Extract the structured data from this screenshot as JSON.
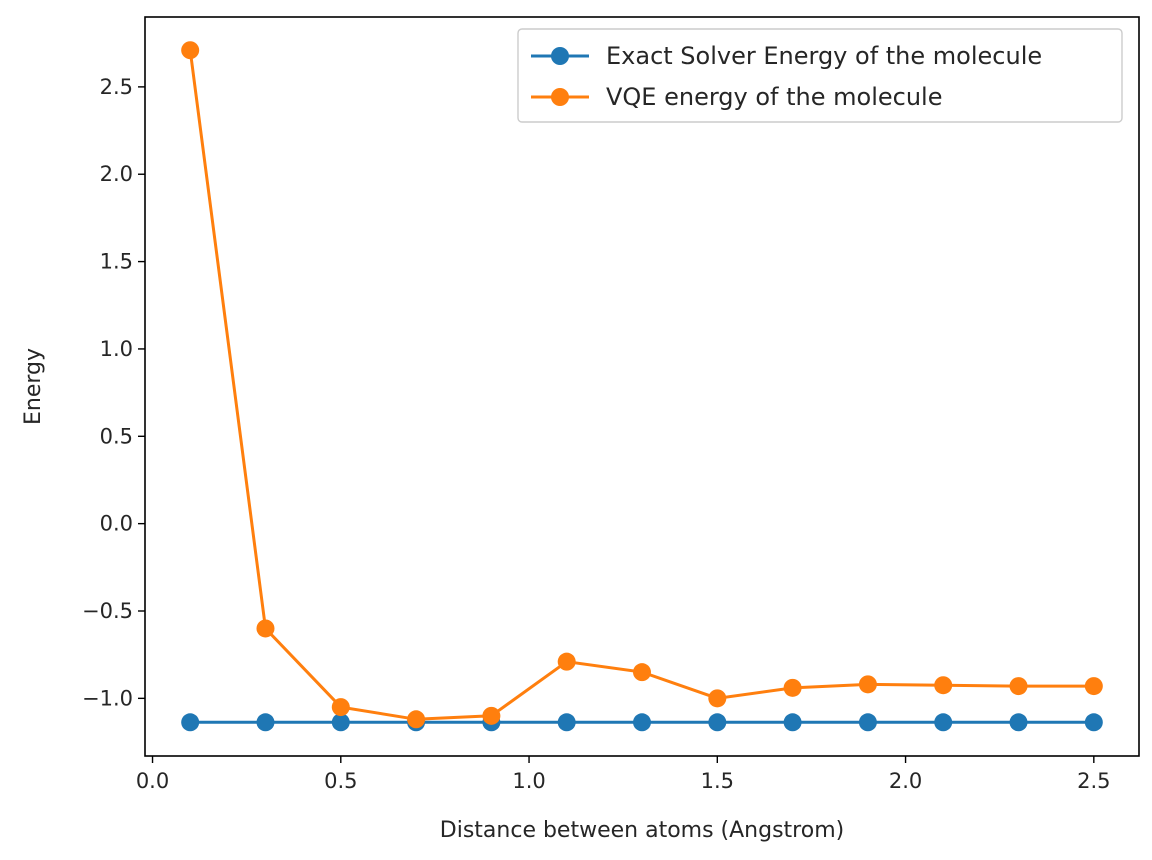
{
  "chart_data": {
    "type": "line",
    "title": "",
    "xlabel": "Distance between atoms (Angstrom)",
    "ylabel": "Energy",
    "xlim": [
      -0.02,
      2.62
    ],
    "ylim": [
      -1.33,
      2.9
    ],
    "xticks": [
      0.0,
      0.5,
      1.0,
      1.5,
      2.0,
      2.5
    ],
    "xtick_labels": [
      "0.0",
      "0.5",
      "1.0",
      "1.5",
      "2.0",
      "2.5"
    ],
    "yticks": [
      -1.0,
      -0.5,
      0.0,
      0.5,
      1.0,
      1.5,
      2.0,
      2.5
    ],
    "ytick_labels": [
      "−1.0",
      "−0.5",
      "0.0",
      "0.5",
      "1.0",
      "1.5",
      "2.0",
      "2.5"
    ],
    "grid": false,
    "legend": "top-right",
    "x": [
      0.1,
      0.3,
      0.5,
      0.7,
      0.9,
      1.1,
      1.3,
      1.5,
      1.7,
      1.9,
      2.1,
      2.3,
      2.5
    ],
    "series": [
      {
        "name": "Exact Solver Energy of the molecule",
        "color": "#1f77b4",
        "marker": "circle",
        "values": [
          -1.137,
          -1.137,
          -1.137,
          -1.137,
          -1.137,
          -1.137,
          -1.137,
          -1.137,
          -1.137,
          -1.137,
          -1.137,
          -1.137,
          -1.137
        ]
      },
      {
        "name": "VQE energy of the molecule",
        "color": "#ff7f0e",
        "marker": "circle",
        "values": [
          2.71,
          -0.6,
          -1.05,
          -1.12,
          -1.1,
          -0.79,
          -0.85,
          -1.0,
          -0.94,
          -0.92,
          -0.925,
          -0.93,
          -0.93
        ]
      }
    ]
  }
}
